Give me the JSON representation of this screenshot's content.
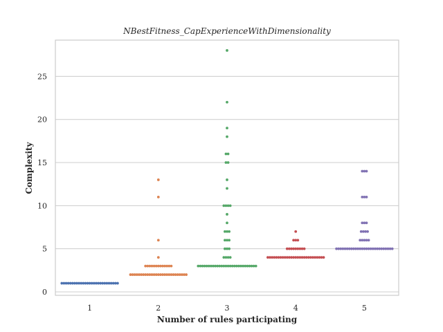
{
  "chart_data": {
    "type": "scatter",
    "subtype": "swarm",
    "title": "NBestFitness_CapExperienceWithDimensionality",
    "xlabel": "Number of rules participating",
    "ylabel": "Complexity",
    "categories": [
      "1",
      "2",
      "3",
      "4",
      "5"
    ],
    "yticks": [
      0,
      5,
      10,
      15,
      20,
      25
    ],
    "ylim": [
      -0.4,
      29.2
    ],
    "grid": "horizontal",
    "colors": [
      "#4c72b0",
      "#dd8452",
      "#55a868",
      "#c44e52",
      "#8172b3"
    ],
    "series": [
      {
        "category": "1",
        "values": [
          1,
          1,
          1,
          1,
          1,
          1,
          1,
          1,
          1,
          1,
          1,
          1,
          1,
          1,
          1,
          1,
          1,
          1,
          1,
          1,
          1,
          1,
          1,
          1,
          1,
          1,
          1
        ]
      },
      {
        "category": "2",
        "values": [
          2,
          2,
          2,
          2,
          2,
          2,
          2,
          2,
          2,
          2,
          2,
          2,
          2,
          2,
          2,
          2,
          2,
          2,
          2,
          2,
          2,
          2,
          2,
          2,
          2,
          2,
          2,
          3,
          3,
          3,
          3,
          3,
          3,
          3,
          3,
          3,
          3,
          3,
          3,
          3,
          4,
          6,
          11,
          13
        ]
      },
      {
        "category": "3",
        "values": [
          3,
          3,
          3,
          3,
          3,
          3,
          3,
          3,
          3,
          3,
          3,
          3,
          3,
          3,
          3,
          3,
          3,
          3,
          3,
          3,
          3,
          3,
          3,
          3,
          3,
          3,
          3,
          3,
          4,
          4,
          4,
          4,
          5,
          5,
          5,
          6,
          6,
          6,
          7,
          7,
          7,
          8,
          9,
          10,
          10,
          10,
          10,
          12,
          13,
          15,
          15,
          16,
          16,
          18,
          19,
          22,
          28
        ]
      },
      {
        "category": "4",
        "values": [
          4,
          4,
          4,
          4,
          4,
          4,
          4,
          4,
          4,
          4,
          4,
          4,
          4,
          4,
          4,
          4,
          4,
          4,
          4,
          4,
          4,
          4,
          4,
          4,
          4,
          4,
          4,
          5,
          5,
          5,
          5,
          5,
          5,
          5,
          5,
          5,
          6,
          6,
          6,
          7
        ]
      },
      {
        "category": "5",
        "values": [
          5,
          5,
          5,
          5,
          5,
          5,
          5,
          5,
          5,
          5,
          5,
          5,
          5,
          5,
          5,
          5,
          5,
          5,
          5,
          5,
          5,
          5,
          5,
          5,
          5,
          5,
          5,
          6,
          6,
          6,
          6,
          6,
          7,
          7,
          7,
          7,
          8,
          8,
          8,
          11,
          11,
          11,
          14,
          14,
          14
        ]
      }
    ]
  }
}
